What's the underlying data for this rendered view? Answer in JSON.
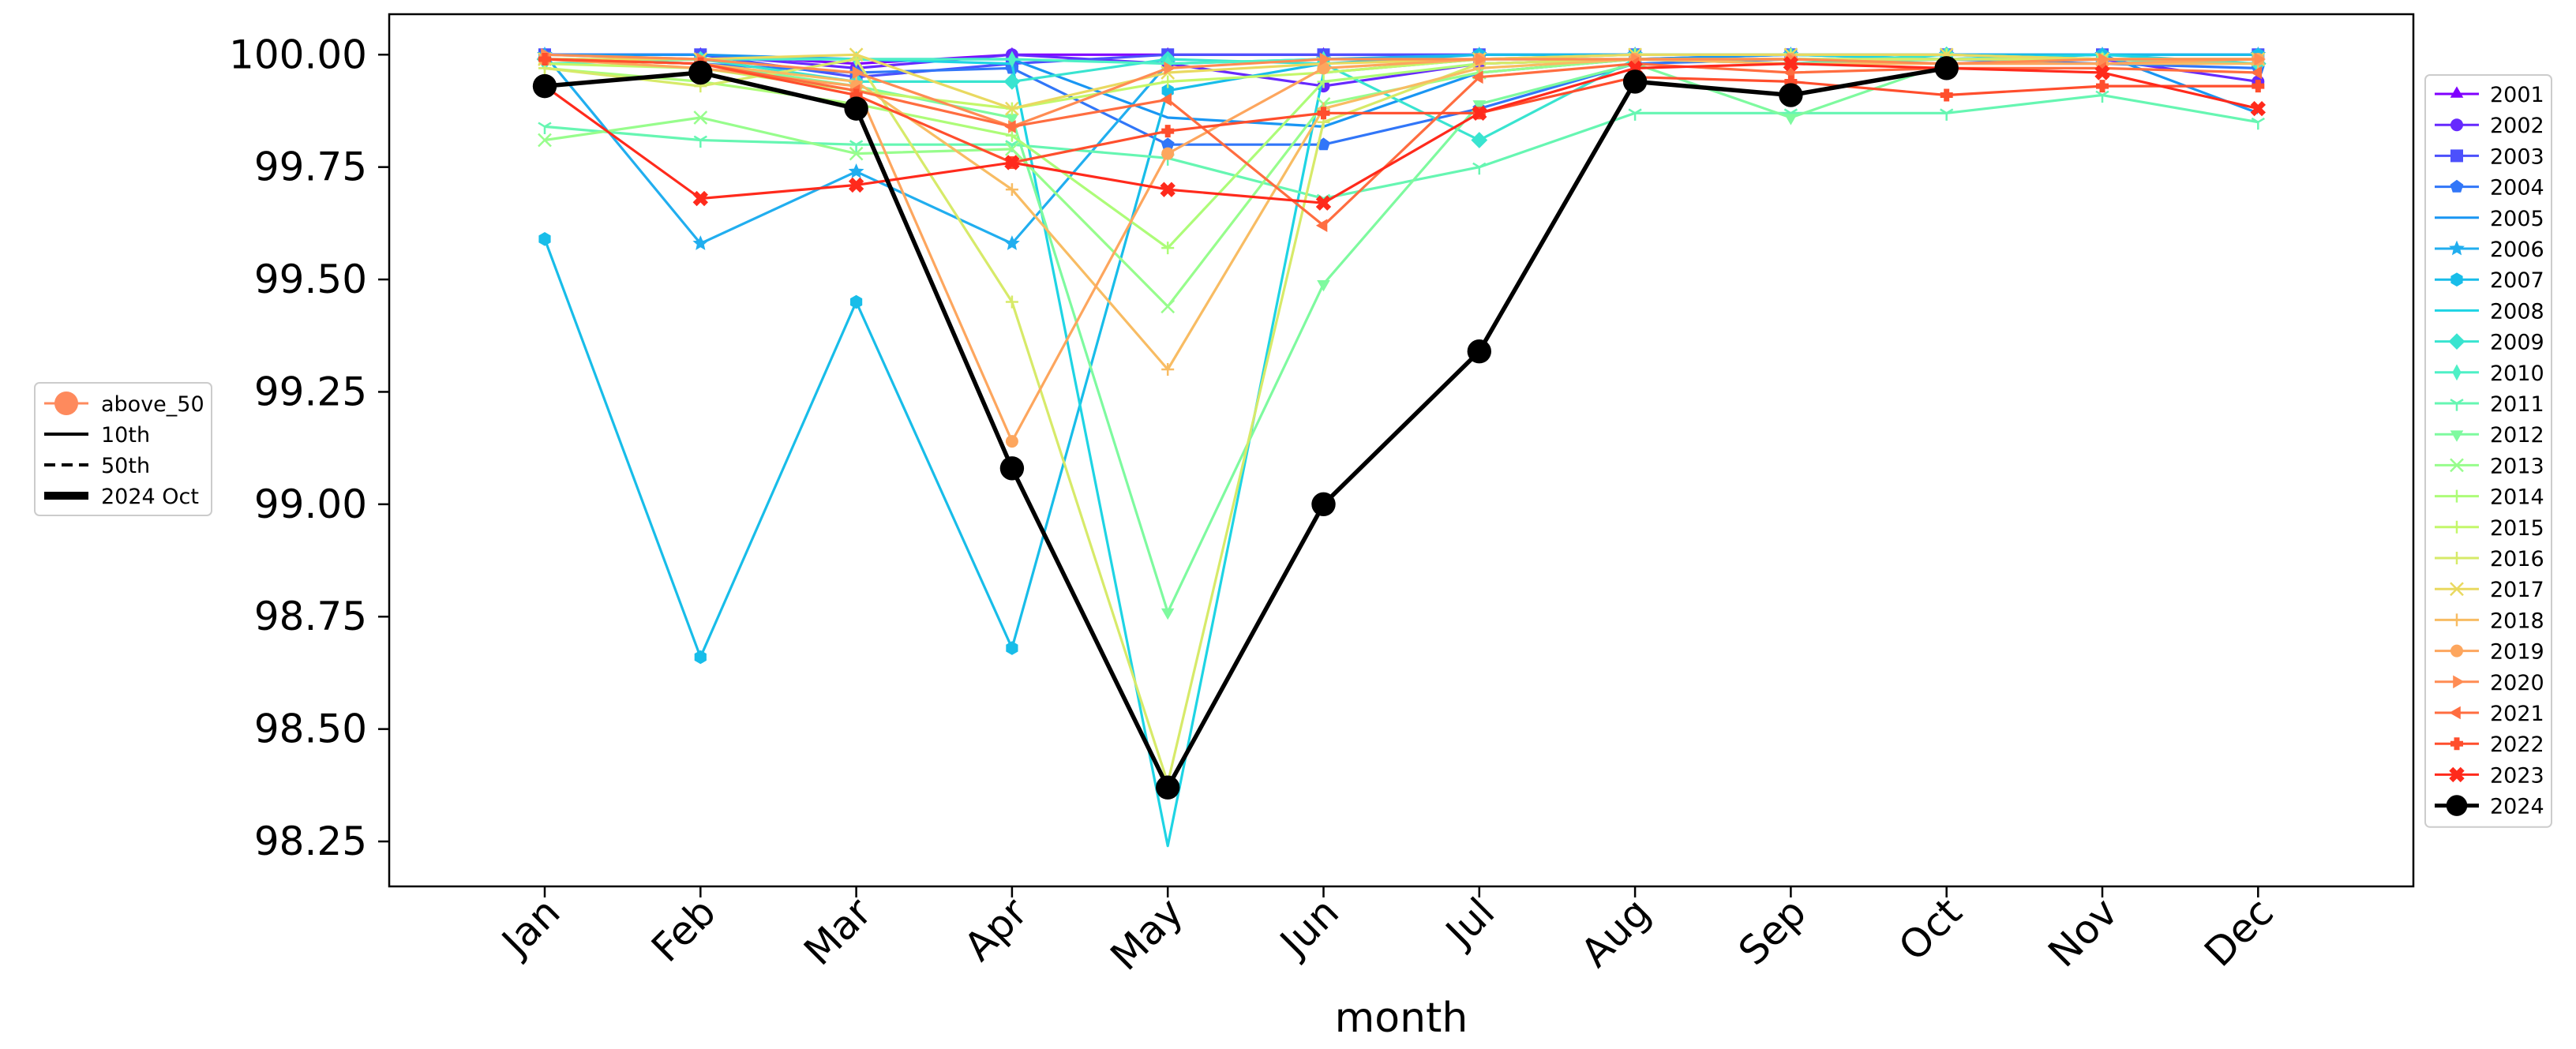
{
  "chart_data": {
    "type": "line",
    "title": "",
    "xlabel": "month",
    "ylabel": "",
    "categories": [
      "Jan",
      "Feb",
      "Mar",
      "Apr",
      "May",
      "Jun",
      "Jul",
      "Aug",
      "Sep",
      "Oct",
      "Nov",
      "Dec"
    ],
    "ylim": [
      98.15,
      100.09
    ],
    "yticks": [
      98.25,
      98.5,
      98.75,
      99.0,
      99.25,
      99.5,
      99.75,
      100.0
    ],
    "ytick_labels": [
      "98.25",
      "98.50",
      "98.75",
      "99.00",
      "99.25",
      "99.50",
      "99.75",
      "100.00"
    ],
    "grid": false,
    "legend_placement": "right",
    "series": [
      {
        "name": "2001",
        "color": "#8000ff",
        "marker": "triangle",
        "values": [
          100.0,
          100.0,
          99.98,
          100.0,
          100.0,
          100.0,
          100.0,
          100.0,
          100.0,
          100.0,
          100.0,
          100.0
        ]
      },
      {
        "name": "2002",
        "color": "#6629fe",
        "marker": "circle",
        "values": [
          100.0,
          100.0,
          99.97,
          100.0,
          99.98,
          99.93,
          99.98,
          99.99,
          100.0,
          100.0,
          99.99,
          99.94
        ]
      },
      {
        "name": "2003",
        "color": "#4c50fc",
        "marker": "square",
        "values": [
          100.0,
          100.0,
          99.95,
          99.98,
          100.0,
          100.0,
          100.0,
          100.0,
          100.0,
          100.0,
          100.0,
          100.0
        ]
      },
      {
        "name": "2004",
        "color": "#3176f8",
        "marker": "pentagon",
        "values": [
          99.99,
          99.98,
          99.96,
          99.97,
          99.8,
          99.8,
          99.88,
          99.98,
          99.99,
          99.99,
          99.98,
          99.97
        ]
      },
      {
        "name": "2005",
        "color": "#1996f3",
        "marker": "none",
        "values": [
          100.0,
          100.0,
          99.99,
          99.99,
          99.86,
          99.84,
          99.96,
          99.99,
          100.0,
          99.99,
          100.0,
          99.87
        ]
      },
      {
        "name": "2006",
        "color": "#21aeef",
        "marker": "star",
        "values": [
          100.0,
          99.58,
          99.74,
          99.58,
          99.98,
          99.99,
          100.0,
          100.0,
          100.0,
          100.0,
          100.0,
          100.0
        ]
      },
      {
        "name": "2007",
        "color": "#18bde9",
        "marker": "hexagon",
        "values": [
          99.59,
          98.66,
          99.45,
          98.68,
          99.92,
          99.98,
          100.0,
          100.0,
          100.0,
          100.0,
          100.0,
          100.0
        ]
      },
      {
        "name": "2008",
        "color": "#1ed4e4",
        "marker": "none",
        "values": [
          100.0,
          99.99,
          99.99,
          99.98,
          98.24,
          99.96,
          99.99,
          100.0,
          100.0,
          99.99,
          100.0,
          99.98
        ]
      },
      {
        "name": "2009",
        "color": "#39e4d0",
        "marker": "diamond",
        "values": [
          99.99,
          99.99,
          99.94,
          99.94,
          99.99,
          99.98,
          99.81,
          99.99,
          99.98,
          100.0,
          99.99,
          99.98
        ]
      },
      {
        "name": "2010",
        "color": "#4ef0c6",
        "marker": "thin_diamond",
        "values": [
          99.98,
          99.99,
          99.99,
          99.99,
          99.98,
          99.99,
          99.99,
          99.99,
          99.98,
          99.99,
          99.99,
          99.98
        ]
      },
      {
        "name": "2011",
        "color": "#66f6b2",
        "marker": "tri_down",
        "values": [
          99.84,
          99.81,
          99.8,
          99.8,
          99.77,
          99.68,
          99.75,
          99.87,
          99.87,
          99.87,
          99.91,
          99.85
        ]
      },
      {
        "name": "2012",
        "color": "#7efa9f",
        "marker": "triangle_down",
        "values": [
          99.99,
          99.98,
          99.93,
          99.86,
          98.76,
          99.49,
          99.89,
          99.98,
          99.86,
          99.98,
          99.99,
          99.99
        ]
      },
      {
        "name": "2013",
        "color": "#97fd8c",
        "marker": "x",
        "values": [
          99.81,
          99.86,
          99.78,
          99.79,
          99.44,
          99.89,
          99.96,
          99.99,
          99.99,
          99.99,
          99.99,
          99.99
        ]
      },
      {
        "name": "2014",
        "color": "#adfc78",
        "marker": "plus",
        "values": [
          99.97,
          99.94,
          99.89,
          99.82,
          99.57,
          99.94,
          99.98,
          99.99,
          99.99,
          99.99,
          99.99,
          99.99
        ]
      },
      {
        "name": "2015",
        "color": "#c4f76a",
        "marker": "plus",
        "values": [
          99.98,
          99.97,
          99.92,
          99.88,
          99.94,
          99.96,
          99.99,
          100.0,
          100.0,
          100.0,
          99.99,
          99.99
        ]
      },
      {
        "name": "2016",
        "color": "#d7ea69",
        "marker": "plus",
        "values": [
          99.97,
          99.93,
          99.99,
          99.45,
          98.38,
          99.85,
          99.98,
          99.99,
          99.99,
          99.99,
          99.99,
          99.99
        ]
      },
      {
        "name": "2017",
        "color": "#e9d960",
        "marker": "x",
        "values": [
          99.99,
          99.99,
          100.0,
          99.88,
          99.96,
          99.98,
          99.99,
          100.0,
          100.0,
          100.0,
          99.99,
          99.99
        ]
      },
      {
        "name": "2018",
        "color": "#f8bc63",
        "marker": "plus",
        "values": [
          99.99,
          99.98,
          99.94,
          99.7,
          99.3,
          99.88,
          99.97,
          99.99,
          99.98,
          99.98,
          99.98,
          99.98
        ]
      },
      {
        "name": "2019",
        "color": "#fda65e",
        "marker": "octagon",
        "values": [
          99.99,
          99.97,
          99.93,
          99.14,
          99.78,
          99.97,
          99.99,
          99.99,
          99.99,
          99.98,
          99.98,
          99.99
        ]
      },
      {
        "name": "2020",
        "color": "#ff8c53",
        "marker": "triangle_right",
        "values": [
          100.0,
          99.99,
          99.96,
          99.84,
          99.97,
          99.99,
          99.99,
          99.99,
          99.99,
          99.98,
          99.99,
          99.99
        ]
      },
      {
        "name": "2021",
        "color": "#ff6d40",
        "marker": "triangle_left",
        "values": [
          99.99,
          99.98,
          99.92,
          99.84,
          99.9,
          99.62,
          99.95,
          99.98,
          99.96,
          99.97,
          99.97,
          99.96
        ]
      },
      {
        "name": "2022",
        "color": "#ff4e2d",
        "marker": "plus_filled",
        "values": [
          99.99,
          99.98,
          99.91,
          99.76,
          99.83,
          99.87,
          99.87,
          99.95,
          99.94,
          99.91,
          99.93,
          99.93
        ]
      },
      {
        "name": "2023",
        "color": "#ff2a1c",
        "marker": "x_filled",
        "values": [
          99.93,
          99.68,
          99.71,
          99.76,
          99.7,
          99.67,
          99.87,
          99.97,
          99.98,
          99.97,
          99.96,
          99.88
        ]
      },
      {
        "name": "2024",
        "color": "#000000",
        "marker": "circle_large",
        "values": [
          99.93,
          99.96,
          99.88,
          99.08,
          98.37,
          99.0,
          99.34,
          99.94,
          99.91,
          99.97,
          null,
          null
        ]
      }
    ],
    "side_legend": {
      "placement": "left",
      "entries": [
        {
          "label": "above_50",
          "color": "#fe8a5d",
          "style": "marker-line"
        },
        {
          "label": "10th",
          "color": "#000000",
          "style": "solid"
        },
        {
          "label": "50th",
          "color": "#000000",
          "style": "dashed"
        },
        {
          "label": "2024 Oct",
          "color": "#000000",
          "style": "thick"
        }
      ]
    }
  }
}
